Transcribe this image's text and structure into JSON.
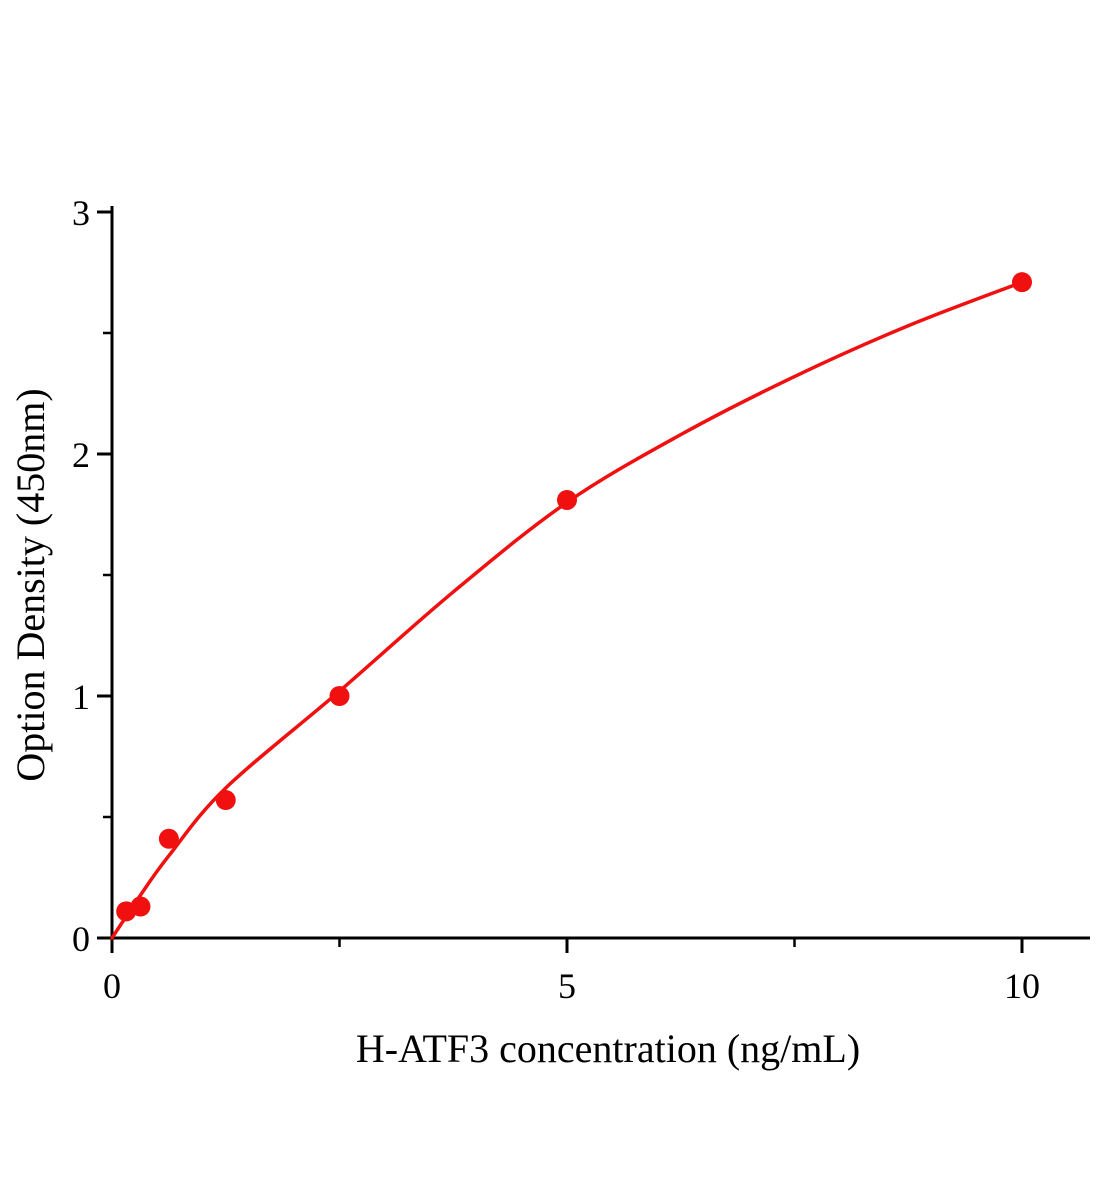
{
  "figure": {
    "background": "#ffffff"
  },
  "chart_data": {
    "type": "scatter",
    "title": "",
    "xlabel": "H-ATF3 concentration (ng/mL)",
    "ylabel": "Option Density (450nm)",
    "xlim": [
      0,
      10.75
    ],
    "ylim": [
      0,
      3.02
    ],
    "grid": false,
    "legend": null,
    "axis_color": "#000000",
    "marker_color": "#f01010",
    "line_color": "#f01010",
    "x_ticks": {
      "major": [
        {
          "value": 0,
          "label": "0"
        },
        {
          "value": 5,
          "label": "5"
        },
        {
          "value": 10,
          "label": "10"
        }
      ],
      "minor": [
        2.5,
        7.5
      ]
    },
    "y_ticks": {
      "major": [
        {
          "value": 0,
          "label": "0"
        },
        {
          "value": 1,
          "label": "1"
        },
        {
          "value": 2,
          "label": "2"
        },
        {
          "value": 3,
          "label": "3"
        }
      ],
      "minor": [
        0.5,
        1.5,
        2.5
      ]
    },
    "points": [
      {
        "x": 0.156,
        "y": 0.11
      },
      {
        "x": 0.313,
        "y": 0.13
      },
      {
        "x": 0.625,
        "y": 0.41
      },
      {
        "x": 1.25,
        "y": 0.57
      },
      {
        "x": 2.5,
        "y": 1.0
      },
      {
        "x": 5,
        "y": 1.81
      },
      {
        "x": 10,
        "y": 2.71
      }
    ],
    "fit_curve": [
      {
        "x": 0,
        "y": 0.0
      },
      {
        "x": 0.3,
        "y": 0.17
      },
      {
        "x": 0.625,
        "y": 0.34
      },
      {
        "x": 1.25,
        "y": 0.62
      },
      {
        "x": 2.5,
        "y": 1.02
      },
      {
        "x": 3.75,
        "y": 1.43
      },
      {
        "x": 5,
        "y": 1.8
      },
      {
        "x": 6.25,
        "y": 2.08
      },
      {
        "x": 7.5,
        "y": 2.32
      },
      {
        "x": 8.75,
        "y": 2.53
      },
      {
        "x": 10,
        "y": 2.71
      }
    ]
  }
}
